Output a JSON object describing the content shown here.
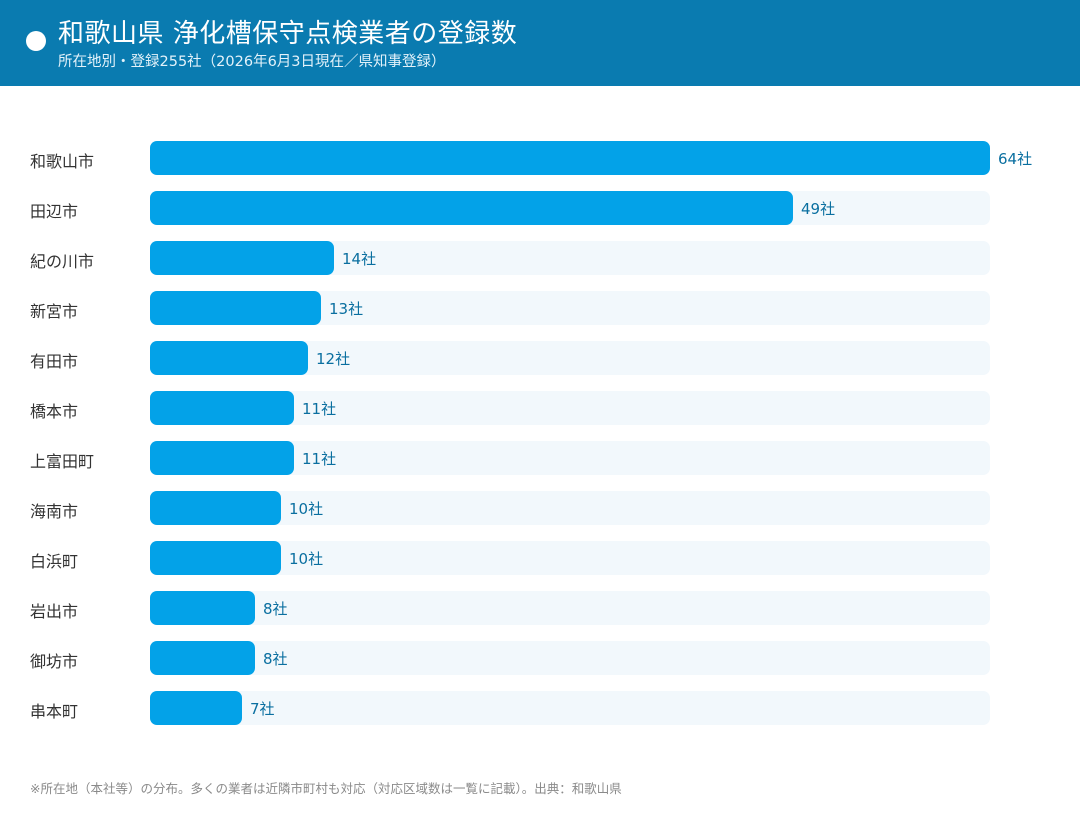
{
  "header": {
    "title": "和歌山県 浄化槽保守点検業者の登録数",
    "subtitle": "所在地別・登録255社（2026年6月3日現在／県知事登録）"
  },
  "chart_data": {
    "type": "bar",
    "orientation": "horizontal",
    "title": "和歌山県 浄化槽保守点検業者の登録数",
    "subtitle": "所在地別・登録255社（2026年6月3日現在／県知事登録）",
    "xlim": [
      0,
      64
    ],
    "grid": false,
    "categories": [
      "和歌山市",
      "田辺市",
      "紀の川市",
      "新宮市",
      "有田市",
      "橋本市",
      "上富田町",
      "海南市",
      "白浜町",
      "岩出市",
      "御坊市",
      "串本町"
    ],
    "values": [
      64,
      49,
      14,
      13,
      12,
      11,
      11,
      10,
      10,
      8,
      8,
      7
    ],
    "value_labels": [
      "64社",
      "49社",
      "14社",
      "13社",
      "12社",
      "11社",
      "11社",
      "10社",
      "10社",
      "8社",
      "8社",
      "7社"
    ],
    "colors": {
      "bar": "#03a2e8",
      "track": "#f2f8fc",
      "value_text": "#0a6fa0",
      "header": "#0a7bb0"
    }
  },
  "footnote": "※所在地（本社等）の分布。多くの業者は近隣市町村も対応（対応区域数は一覧に記載）。出典：和歌山県"
}
